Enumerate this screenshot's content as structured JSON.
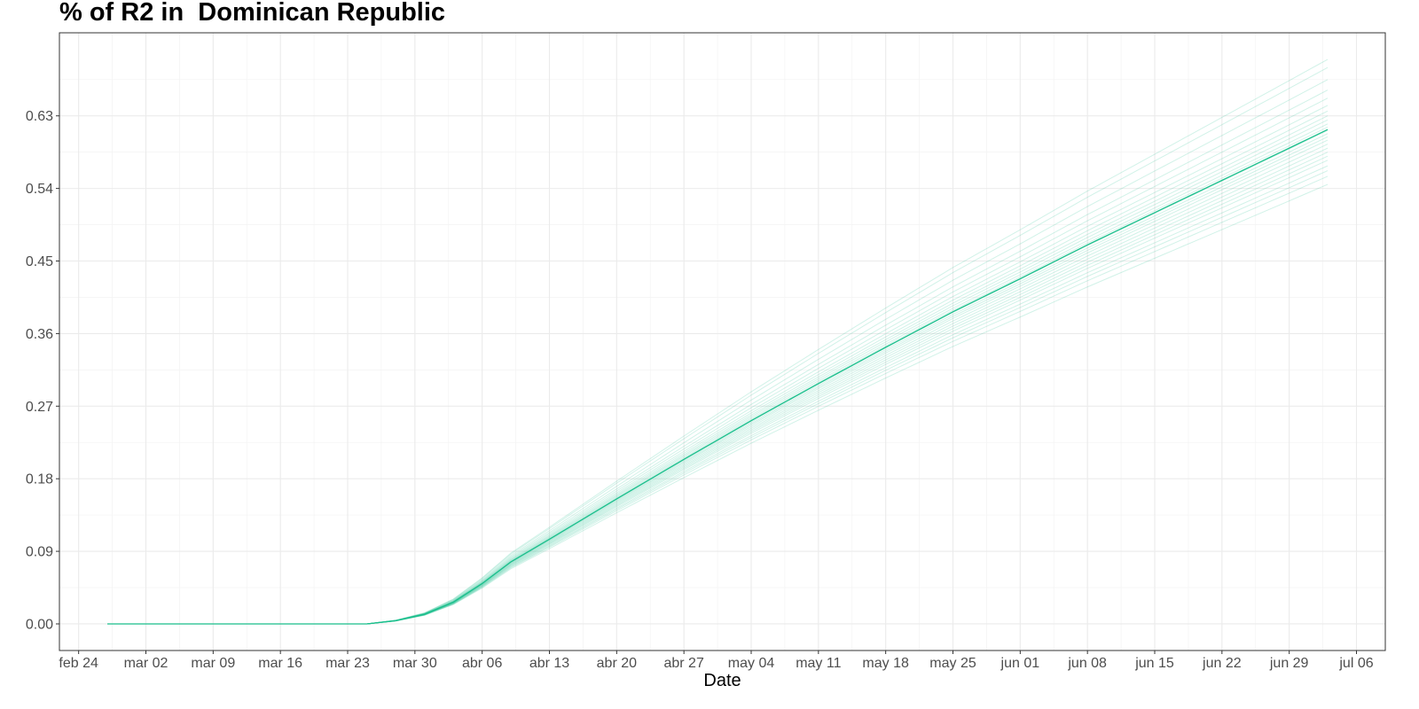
{
  "chart_data": {
    "type": "line",
    "title": "% of R2 in  Dominican Republic",
    "xlabel": "Date",
    "ylabel": "",
    "x_tick_labels": [
      "feb 24",
      "mar 02",
      "mar 09",
      "mar 16",
      "mar 23",
      "mar 30",
      "abr 06",
      "abr 13",
      "abr 20",
      "abr 27",
      "may 04",
      "may 11",
      "may 18",
      "may 25",
      "jun 01",
      "jun 08",
      "jun 15",
      "jun 22",
      "jun 29",
      "jul 06"
    ],
    "x_tick_dates": [
      "2020-02-24",
      "2020-03-02",
      "2020-03-09",
      "2020-03-16",
      "2020-03-23",
      "2020-03-30",
      "2020-04-06",
      "2020-04-13",
      "2020-04-20",
      "2020-04-27",
      "2020-05-04",
      "2020-05-11",
      "2020-05-18",
      "2020-05-25",
      "2020-06-01",
      "2020-06-08",
      "2020-06-15",
      "2020-06-22",
      "2020-06-29",
      "2020-07-06"
    ],
    "y_tick_labels": [
      "0.00",
      "0.09",
      "0.18",
      "0.27",
      "0.36",
      "0.45",
      "0.54",
      "0.63"
    ],
    "xlim": [
      "2020-02-22",
      "2020-07-09"
    ],
    "ylim": [
      -0.033,
      0.733
    ],
    "grid": true,
    "line_color": "#1abf8c",
    "mean_series": {
      "x": [
        "2020-02-27",
        "2020-03-25",
        "2020-03-28",
        "2020-03-31",
        "2020-04-03",
        "2020-04-06",
        "2020-04-09",
        "2020-04-13",
        "2020-04-20",
        "2020-04-27",
        "2020-05-04",
        "2020-05-11",
        "2020-05-18",
        "2020-05-25",
        "2020-06-01",
        "2020-06-08",
        "2020-06-15",
        "2020-06-22",
        "2020-06-29",
        "2020-07-03"
      ],
      "y": [
        0.0,
        0.0,
        0.004,
        0.012,
        0.027,
        0.05,
        0.077,
        0.105,
        0.155,
        0.204,
        0.252,
        0.298,
        0.343,
        0.387,
        0.428,
        0.47,
        0.51,
        0.55,
        0.59,
        0.613
      ]
    },
    "ensemble_final_values": [
      0.545,
      0.555,
      0.562,
      0.568,
      0.575,
      0.58,
      0.585,
      0.59,
      0.595,
      0.6,
      0.604,
      0.608,
      0.612,
      0.616,
      0.62,
      0.625,
      0.63,
      0.636,
      0.643,
      0.652,
      0.662,
      0.675,
      0.69,
      0.7
    ]
  }
}
